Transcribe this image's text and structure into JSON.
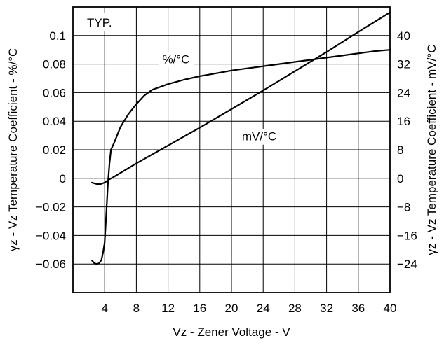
{
  "chart_data": {
    "type": "line",
    "title": "",
    "annotation": "TYP.",
    "xlabel": "Vz - Zener Voltage - V",
    "ylabel_left": "γz - Vz Temperature Coefficient - %/°C",
    "ylabel_right": "γz - Vz Temperature Coefficient - mV/°C",
    "xlim": [
      0,
      40
    ],
    "ylim_left": [
      -0.08,
      0.12
    ],
    "ylim_right": [
      -32,
      48
    ],
    "grid": true,
    "x_ticks": [
      4,
      8,
      12,
      16,
      20,
      24,
      28,
      32,
      36,
      40
    ],
    "x_tick_labels": [
      "4",
      "8",
      "12",
      "16",
      "20",
      "24",
      "28",
      "32",
      "36",
      "40"
    ],
    "y_left_ticks": [
      -0.06,
      -0.04,
      -0.02,
      0,
      0.02,
      0.04,
      0.06,
      0.08,
      0.1
    ],
    "y_left_tick_labels": [
      "−0.06",
      "−0.04",
      "−0.02",
      "0",
      "0.02",
      "0.04",
      "0.06",
      "0.08",
      "0.1"
    ],
    "y_right_ticks": [
      -24,
      -16,
      -8,
      0,
      8,
      16,
      24,
      32,
      40
    ],
    "y_right_tick_labels": [
      "−24",
      "−16",
      "−8",
      "0",
      "8",
      "16",
      "24",
      "32",
      "40"
    ],
    "series": [
      {
        "name": "%/°C",
        "axis": "left",
        "x": [
          2.4,
          2.7,
          3.0,
          3.3,
          3.6,
          3.8,
          4.0,
          4.2,
          4.4,
          4.6,
          4.8,
          5.2,
          6.0,
          7.0,
          8.0,
          9.0,
          10.0,
          12.0,
          14.0,
          16.0,
          18.0,
          20.0,
          22.0,
          24.0,
          26.0,
          28.0,
          30.0,
          32.0,
          34.0,
          36.0,
          38.0,
          40.0
        ],
        "y": [
          -0.0575,
          -0.0595,
          -0.06,
          -0.0595,
          -0.057,
          -0.052,
          -0.045,
          -0.025,
          -0.005,
          0.01,
          0.02,
          0.025,
          0.036,
          0.045,
          0.052,
          0.058,
          0.062,
          0.066,
          0.069,
          0.0715,
          0.0735,
          0.0755,
          0.077,
          0.0785,
          0.08,
          0.0815,
          0.083,
          0.0845,
          0.086,
          0.0875,
          0.089,
          0.09
        ]
      },
      {
        "name": "mV/°C",
        "axis": "right",
        "x": [
          2.4,
          3.0,
          3.5,
          4.0,
          4.5,
          5.0,
          8.0,
          12.0,
          16.0,
          20.0,
          24.0,
          28.0,
          32.0,
          36.0,
          40.0
        ],
        "y": [
          -1.2,
          -1.6,
          -1.6,
          -1.2,
          -0.4,
          0.2,
          4.2,
          9.2,
          14.2,
          19.4,
          24.6,
          30.0,
          35.4,
          41.0,
          46.5
        ]
      }
    ],
    "series_label_positions": [
      {
        "text": "%/°C",
        "x": 13.0,
        "y_left": 0.0805
      },
      {
        "text": "mV/°C",
        "x": 23.5,
        "y_left": 0.0265
      }
    ]
  }
}
